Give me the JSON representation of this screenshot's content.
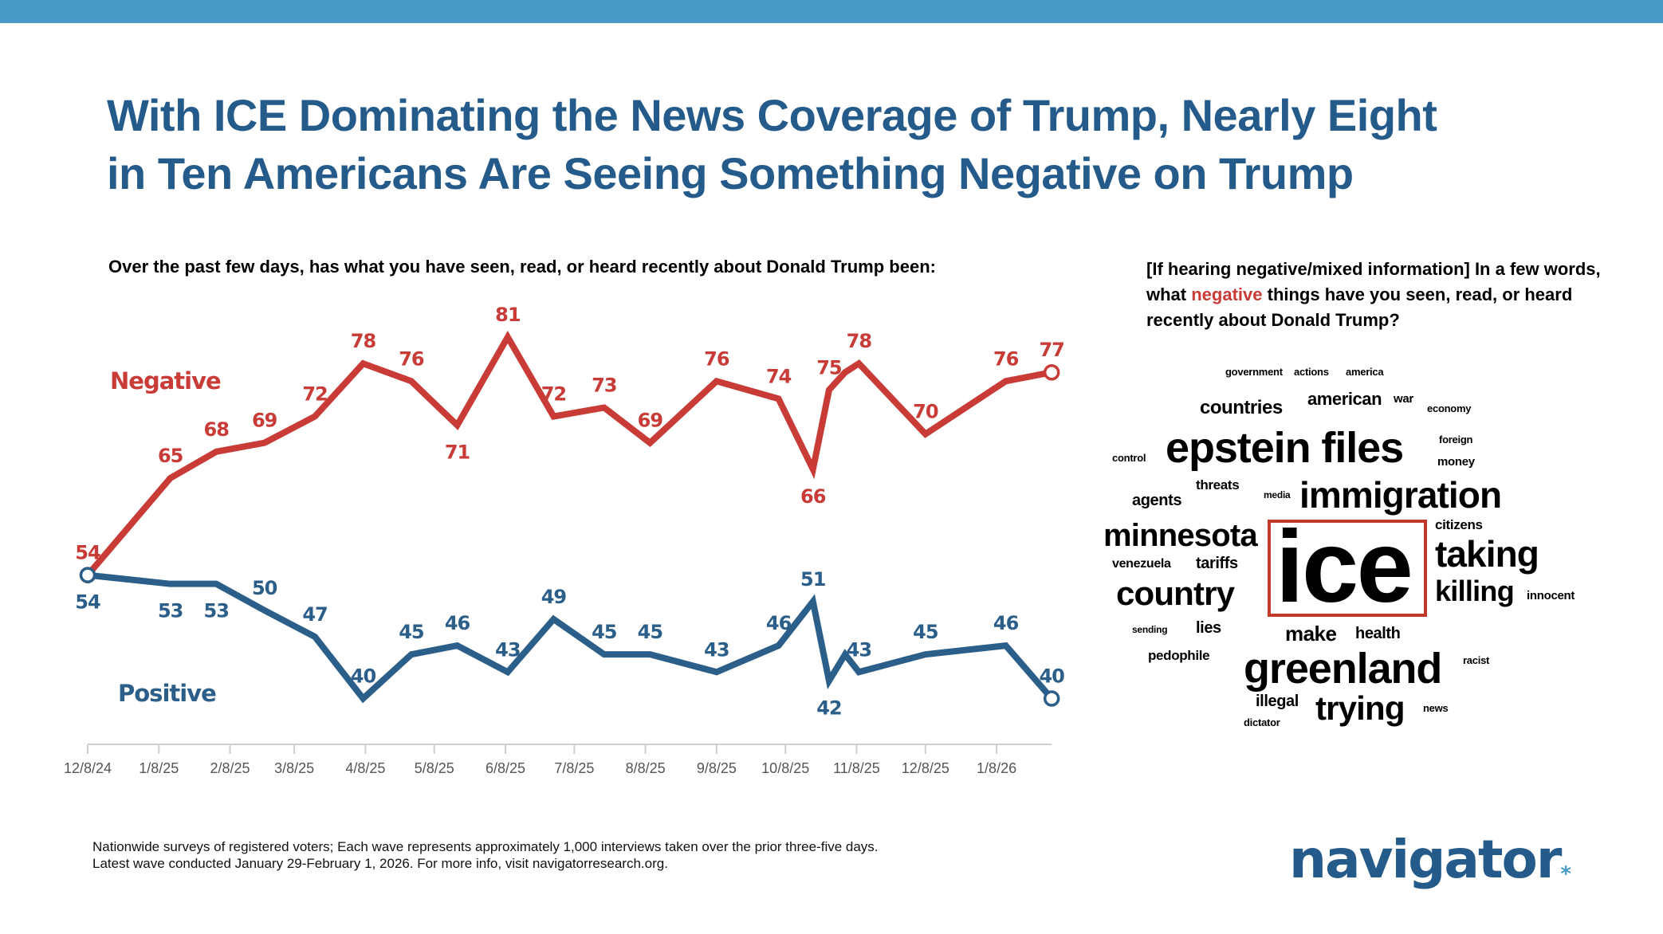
{
  "header": {
    "title_line1": "With ICE Dominating the News Coverage of Trump, Nearly Eight",
    "title_line2": "in Ten Americans Are Seeing Something Negative on Trump",
    "bar_color": "#4a9ac9"
  },
  "chart_question": "Over the past few days, has what you have seen, read, or heard recently about Donald Trump been:",
  "chart_data": {
    "type": "line",
    "xlabel": "",
    "ylabel": "",
    "grid": false,
    "x_ticks": [
      "12/8/24",
      "1/8/25",
      "2/8/25",
      "3/8/25",
      "4/8/25",
      "5/8/25",
      "6/8/25",
      "7/8/25",
      "8/8/25",
      "9/8/25",
      "10/8/25",
      "11/8/25",
      "12/8/25",
      "1/8/26"
    ],
    "x_tick_dates": [
      "2024-12-08",
      "2025-01-08",
      "2025-02-08",
      "2025-03-08",
      "2025-04-08",
      "2025-05-08",
      "2025-06-08",
      "2025-07-08",
      "2025-08-08",
      "2025-09-08",
      "2025-10-08",
      "2025-11-08",
      "2025-12-08",
      "2026-01-08"
    ],
    "x": [
      "2024-12-08",
      "2025-01-13",
      "2025-02-02",
      "2025-02-23",
      "2025-03-17",
      "2025-04-07",
      "2025-04-28",
      "2025-05-18",
      "2025-06-09",
      "2025-06-29",
      "2025-07-21",
      "2025-08-10",
      "2025-09-08",
      "2025-10-05",
      "2025-10-20",
      "2025-10-27",
      "2025-11-03",
      "2025-11-09",
      "2025-12-08",
      "2026-01-12",
      "2026-02-01"
    ],
    "series": [
      {
        "name": "Negative",
        "color": "#c83b36",
        "values": [
          54,
          65,
          68,
          69,
          72,
          78,
          76,
          71,
          81,
          72,
          73,
          69,
          76,
          74,
          66,
          75,
          77,
          78,
          70,
          76,
          77
        ],
        "labeled": [
          true,
          true,
          true,
          true,
          true,
          true,
          true,
          true,
          true,
          true,
          true,
          true,
          true,
          true,
          true,
          true,
          false,
          true,
          true,
          true,
          true
        ]
      },
      {
        "name": "Positive",
        "color": "#2b5f8a",
        "values": [
          54,
          53,
          53,
          50,
          47,
          40,
          45,
          46,
          43,
          49,
          45,
          45,
          43,
          46,
          51,
          42,
          45,
          43,
          45,
          46,
          40
        ],
        "labeled": [
          true,
          true,
          true,
          true,
          true,
          true,
          true,
          true,
          true,
          true,
          true,
          true,
          true,
          true,
          true,
          true,
          false,
          true,
          true,
          true,
          true
        ]
      }
    ]
  },
  "wordcloud": {
    "question_prefix": "[If hearing negative/mixed information] In a few words, what ",
    "question_highlight": "negative",
    "question_suffix": " things have you seen, read, or heard recently about Donald Trump?",
    "highlight_color": "#c83b36",
    "words": [
      "government",
      "actions",
      "america",
      "countries",
      "american",
      "war",
      "economy",
      "epstein files",
      "foreign",
      "control",
      "money",
      "threats",
      "agents",
      "media",
      "immigration",
      "minnesota",
      "citizens",
      "ice",
      "taking",
      "venezuela",
      "tariffs",
      "country",
      "killing",
      "make",
      "health",
      "innocent",
      "sending",
      "lies",
      "greenland",
      "racist",
      "pedophile",
      "illegal",
      "trying",
      "news",
      "dictator"
    ],
    "highlighted_word": "ice"
  },
  "footer": {
    "line1": "Nationwide surveys of registered voters; Each wave represents approximately 1,000 interviews taken over the prior three-five days.",
    "line2": "Latest wave conducted January 29-February 1, 2026. For more info, visit navigatorresearch.org."
  },
  "logo": {
    "text": "navigator",
    "mark": "*"
  }
}
